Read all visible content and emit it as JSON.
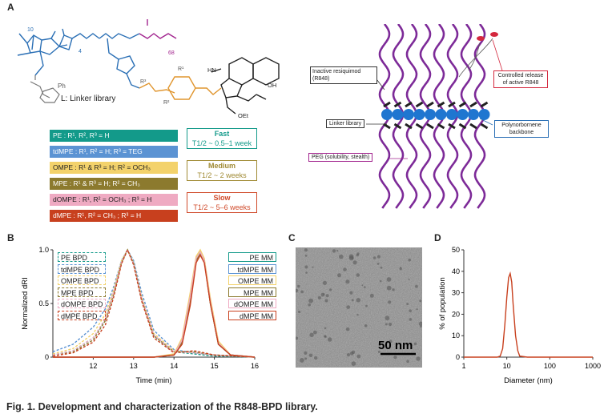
{
  "panels": {
    "a": "A",
    "b": "B",
    "c": "C",
    "d": "D"
  },
  "structure": {
    "linker_label": "L: Linker library",
    "n10": "10",
    "n4": "4",
    "n68": "68",
    "ph": "Ph",
    "r1": "R¹",
    "r2": "R²",
    "r3": "R³",
    "oet": "OEt",
    "oh": "OH",
    "hn": "HN"
  },
  "linkers": [
    {
      "label": "PE : R¹, R², R³ = H",
      "bg": "#139a8a",
      "fg": "#ffffff"
    },
    {
      "label": "tdMPE : R¹, R² = H; R³ = TEG",
      "bg": "#5b93d3",
      "fg": "#ffffff"
    },
    {
      "label": "OMPE : R¹ & R³ = H; R² = OCH₃",
      "bg": "#f3d26b",
      "fg": "#222222"
    },
    {
      "label": "MPE : R¹ & R³ = H; R² = CH₃",
      "bg": "#8c7a2e",
      "fg": "#ffffff"
    },
    {
      "label": "dOMPE : R¹, R² = OCH₃ ; R³ = H",
      "bg": "#efaac2",
      "fg": "#222222"
    },
    {
      "label": "dMPE : R¹, R² = CH₃ ; R³ = H",
      "bg": "#c8401e",
      "fg": "#ffffff"
    }
  ],
  "release": [
    {
      "title": "Fast",
      "rate": "T1/2 ~ 0.5–1 week",
      "color": "#139a8a"
    },
    {
      "title": "Medium",
      "rate": "T1/2 ~ 2 weeks",
      "color": "#a08a33"
    },
    {
      "title": "Slow",
      "rate": "T1/2 ~ 5–6 weeks",
      "color": "#d04a2a"
    }
  ],
  "schematic_labels": {
    "inactive": "Inactive resiquimod (R848)",
    "linker": "Linker library",
    "peg": "PEG (solubility, stealth)",
    "controlled": "Controlled release of active R848",
    "backbone": "Polynorbornene backbone"
  },
  "chart_data": [
    {
      "type": "line",
      "panel": "B",
      "xlabel": "Time (min)",
      "ylabel": "Normalized dRI",
      "xlim": [
        11,
        16
      ],
      "ylim": [
        0,
        1.0
      ],
      "xticks": [
        12,
        13,
        14,
        15,
        16
      ],
      "yticks": [
        0,
        0.5,
        1.0
      ],
      "ytick_labels": [
        "0",
        "0.5",
        "1.0"
      ],
      "series": [
        {
          "name": "PE BPD",
          "color": "#139a8a",
          "dash": true,
          "x": [
            11.0,
            11.5,
            12.0,
            12.3,
            12.5,
            12.7,
            12.85,
            13.0,
            13.2,
            13.5,
            14.0,
            14.5,
            15.0,
            16.0
          ],
          "y": [
            0.02,
            0.06,
            0.18,
            0.35,
            0.6,
            0.9,
            1.0,
            0.88,
            0.55,
            0.2,
            0.05,
            0.03,
            0.01,
            0.0
          ]
        },
        {
          "name": "tdMPE BPD",
          "color": "#5b93d3",
          "dash": true,
          "x": [
            11.0,
            11.5,
            12.0,
            12.3,
            12.5,
            12.7,
            12.85,
            13.0,
            13.2,
            13.5,
            14.0,
            14.5,
            15.0,
            16.0
          ],
          "y": [
            0.05,
            0.12,
            0.28,
            0.45,
            0.65,
            0.9,
            1.0,
            0.9,
            0.6,
            0.25,
            0.07,
            0.04,
            0.02,
            0.0
          ]
        },
        {
          "name": "OMPE BPD",
          "color": "#f3d26b",
          "dash": true,
          "x": [
            11.0,
            11.5,
            12.0,
            12.3,
            12.5,
            12.7,
            12.85,
            13.0,
            13.2,
            13.5,
            14.0,
            14.5,
            15.0,
            16.0
          ],
          "y": [
            0.03,
            0.08,
            0.22,
            0.4,
            0.62,
            0.9,
            1.0,
            0.88,
            0.56,
            0.22,
            0.06,
            0.04,
            0.02,
            0.0
          ]
        },
        {
          "name": "MPE BPD",
          "color": "#8c7a2e",
          "dash": true,
          "x": [
            11.0,
            11.5,
            12.0,
            12.3,
            12.5,
            12.7,
            12.85,
            13.0,
            13.2,
            13.5,
            14.0,
            14.5,
            15.0,
            16.0
          ],
          "y": [
            0.02,
            0.05,
            0.16,
            0.34,
            0.58,
            0.88,
            1.0,
            0.87,
            0.54,
            0.2,
            0.05,
            0.05,
            0.02,
            0.0
          ]
        },
        {
          "name": "dOMPE BPD",
          "color": "#efaac2",
          "dash": true,
          "x": [
            11.0,
            11.5,
            12.0,
            12.3,
            12.5,
            12.7,
            12.85,
            13.0,
            13.2,
            13.5,
            14.0,
            14.5,
            15.0,
            16.0
          ],
          "y": [
            0.02,
            0.06,
            0.18,
            0.36,
            0.6,
            0.89,
            1.0,
            0.87,
            0.55,
            0.21,
            0.05,
            0.04,
            0.02,
            0.0
          ]
        },
        {
          "name": "dMPE BPD",
          "color": "#c8401e",
          "dash": true,
          "x": [
            11.0,
            11.5,
            12.0,
            12.3,
            12.5,
            12.7,
            12.85,
            13.0,
            13.2,
            13.5,
            14.0,
            14.5,
            15.0,
            16.0
          ],
          "y": [
            0.01,
            0.04,
            0.14,
            0.3,
            0.55,
            0.87,
            1.0,
            0.86,
            0.52,
            0.18,
            0.04,
            0.06,
            0.02,
            0.0
          ]
        },
        {
          "name": "PE MM",
          "color": "#139a8a",
          "dash": false,
          "x": [
            11.0,
            13.5,
            14.0,
            14.2,
            14.4,
            14.55,
            14.65,
            14.75,
            14.9,
            15.1,
            15.4,
            16.0
          ],
          "y": [
            0.0,
            0.0,
            0.02,
            0.15,
            0.55,
            0.92,
            0.98,
            0.9,
            0.5,
            0.12,
            0.02,
            0.0
          ]
        },
        {
          "name": "tdMPE MM",
          "color": "#5b93d3",
          "dash": false,
          "x": [
            11.0,
            13.5,
            14.0,
            14.2,
            14.4,
            14.55,
            14.65,
            14.75,
            14.9,
            15.1,
            15.4,
            16.0
          ],
          "y": [
            0.0,
            0.0,
            0.02,
            0.13,
            0.5,
            0.9,
            0.97,
            0.9,
            0.52,
            0.13,
            0.02,
            0.0
          ]
        },
        {
          "name": "OMPE MM",
          "color": "#f3d26b",
          "dash": false,
          "x": [
            11.0,
            13.5,
            14.0,
            14.2,
            14.4,
            14.55,
            14.65,
            14.75,
            14.9,
            15.1,
            15.4,
            16.0
          ],
          "y": [
            0.0,
            0.0,
            0.03,
            0.18,
            0.6,
            0.94,
            1.0,
            0.92,
            0.55,
            0.15,
            0.02,
            0.0
          ]
        },
        {
          "name": "MPE MM",
          "color": "#8c7a2e",
          "dash": false,
          "x": [
            11.0,
            13.5,
            14.0,
            14.2,
            14.4,
            14.55,
            14.65,
            14.75,
            14.9,
            15.1,
            15.4,
            16.0
          ],
          "y": [
            0.0,
            0.0,
            0.02,
            0.14,
            0.52,
            0.9,
            0.97,
            0.9,
            0.5,
            0.12,
            0.02,
            0.0
          ]
        },
        {
          "name": "dOMPE MM",
          "color": "#efaac2",
          "dash": false,
          "x": [
            11.0,
            13.5,
            14.0,
            14.2,
            14.4,
            14.55,
            14.65,
            14.75,
            14.9,
            15.1,
            15.4,
            16.0
          ],
          "y": [
            0.0,
            0.0,
            0.02,
            0.16,
            0.56,
            0.92,
            0.98,
            0.9,
            0.52,
            0.13,
            0.02,
            0.0
          ]
        },
        {
          "name": "dMPE MM",
          "color": "#c8401e",
          "dash": false,
          "x": [
            11.0,
            13.5,
            14.0,
            14.2,
            14.4,
            14.55,
            14.65,
            14.75,
            14.9,
            15.1,
            15.4,
            16.0
          ],
          "y": [
            0.0,
            0.0,
            0.02,
            0.12,
            0.48,
            0.88,
            0.95,
            0.88,
            0.5,
            0.12,
            0.02,
            0.0
          ]
        }
      ]
    },
    {
      "type": "line",
      "panel": "D",
      "xlabel": "Diameter (nm)",
      "ylabel": "% of population",
      "xscale": "log",
      "xlim": [
        1,
        1000
      ],
      "ylim": [
        0,
        50
      ],
      "xticks": [
        1,
        10,
        100,
        1000
      ],
      "yticks": [
        0,
        10,
        20,
        30,
        40,
        50
      ],
      "series": [
        {
          "name": "",
          "color": "#c8401e",
          "x": [
            1,
            6,
            7,
            8,
            9,
            10,
            11,
            12,
            13,
            14,
            16,
            18,
            20,
            30,
            100,
            1000
          ],
          "y": [
            0,
            0,
            0.5,
            4,
            15,
            28,
            37,
            39,
            35,
            25,
            10,
            3,
            0.5,
            0,
            0,
            0
          ]
        }
      ]
    }
  ],
  "tem": {
    "scale": "50 nm"
  },
  "caption": "Fig. 1. Development and characterization of the R848-BPD library."
}
